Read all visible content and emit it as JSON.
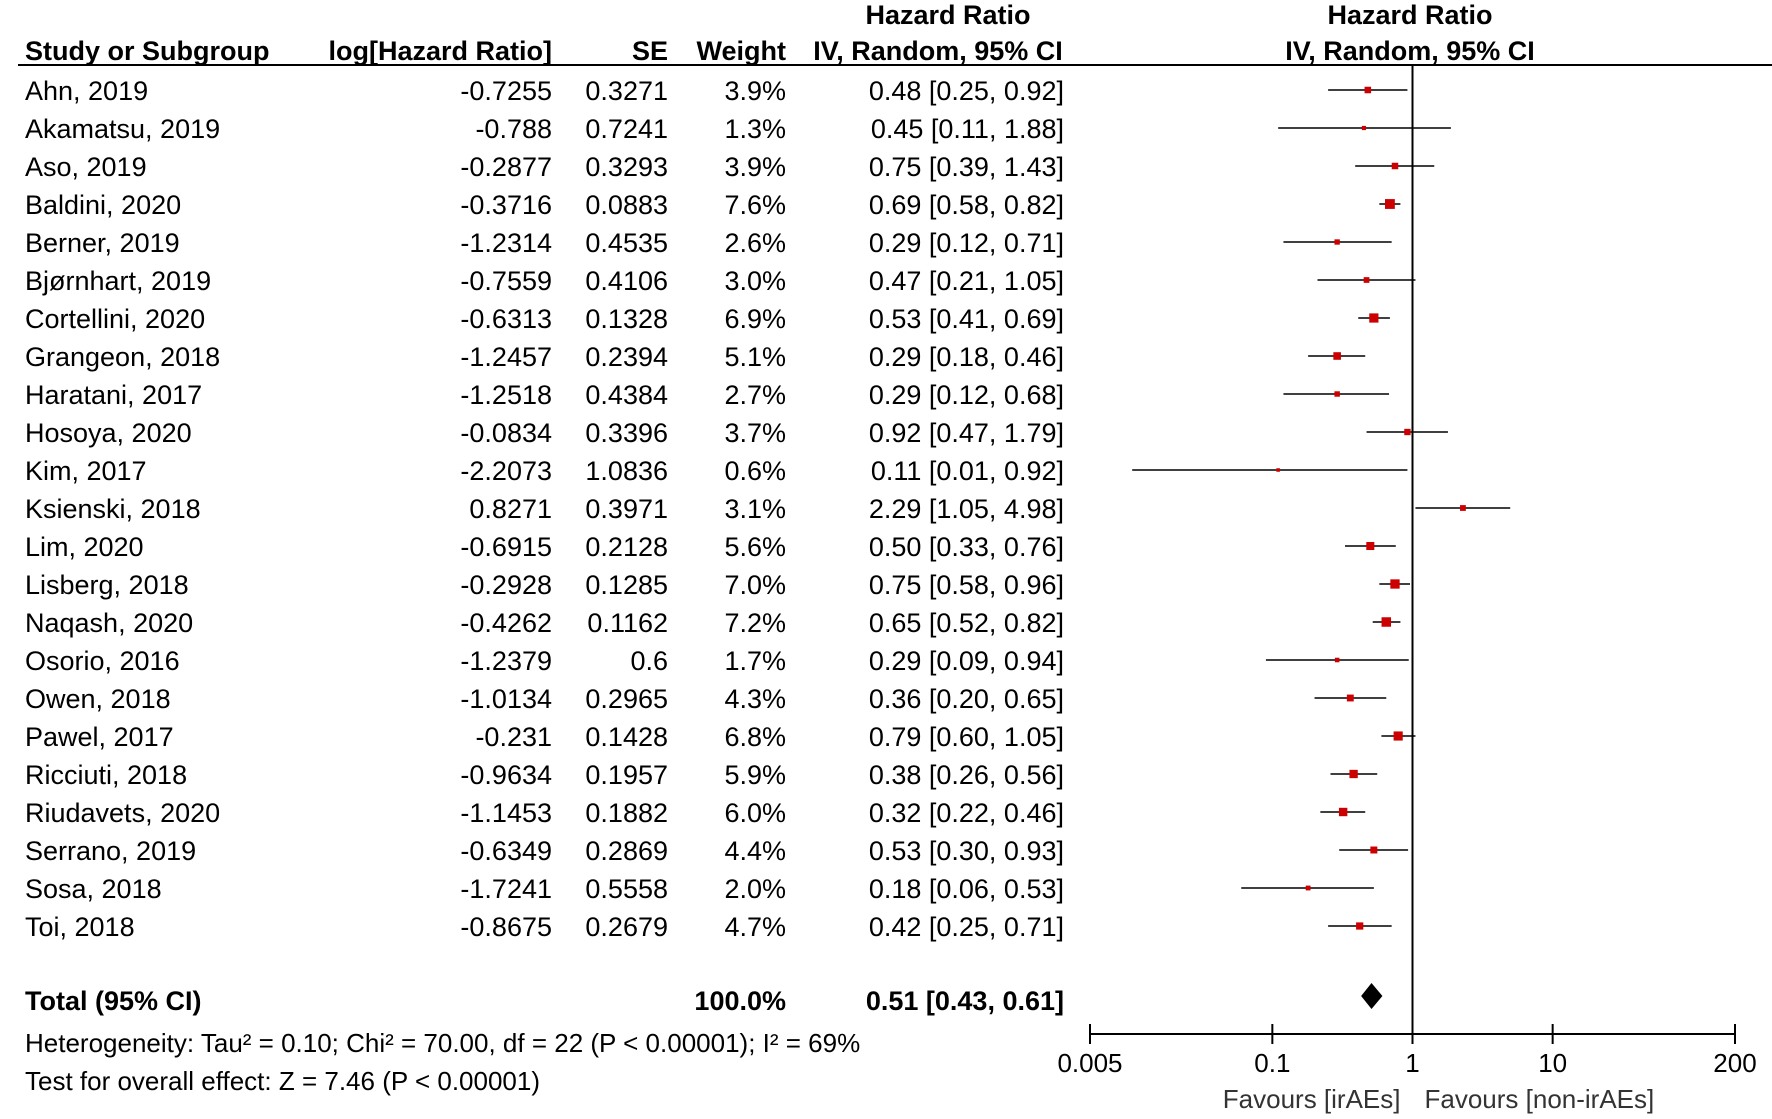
{
  "headers": {
    "study": "Study or Subgroup",
    "log_hr": "log[Hazard Ratio]",
    "se": "SE",
    "weight": "Weight",
    "ci_title": "Hazard Ratio",
    "ci_method": "IV, Random, 95% CI",
    "plot_title": "Hazard Ratio",
    "plot_method": "IV, Random, 95% CI"
  },
  "rows": [
    {
      "study": "Ahn, 2019",
      "log_hr": "-0.7255",
      "se": "0.3271",
      "weight": "3.9%",
      "ci": "0.48 [0.25, 0.92]"
    },
    {
      "study": "Akamatsu, 2019",
      "log_hr": "-0.788",
      "se": "0.7241",
      "weight": "1.3%",
      "ci": "0.45 [0.11, 1.88]"
    },
    {
      "study": "Aso, 2019",
      "log_hr": "-0.2877",
      "se": "0.3293",
      "weight": "3.9%",
      "ci": "0.75 [0.39, 1.43]"
    },
    {
      "study": "Baldini, 2020",
      "log_hr": "-0.3716",
      "se": "0.0883",
      "weight": "7.6%",
      "ci": "0.69 [0.58, 0.82]"
    },
    {
      "study": "Berner, 2019",
      "log_hr": "-1.2314",
      "se": "0.4535",
      "weight": "2.6%",
      "ci": "0.29 [0.12, 0.71]"
    },
    {
      "study": "Bjørnhart, 2019",
      "log_hr": "-0.7559",
      "se": "0.4106",
      "weight": "3.0%",
      "ci": "0.47 [0.21, 1.05]"
    },
    {
      "study": "Cortellini, 2020",
      "log_hr": "-0.6313",
      "se": "0.1328",
      "weight": "6.9%",
      "ci": "0.53 [0.41, 0.69]"
    },
    {
      "study": "Grangeon, 2018",
      "log_hr": "-1.2457",
      "se": "0.2394",
      "weight": "5.1%",
      "ci": "0.29 [0.18, 0.46]"
    },
    {
      "study": "Haratani, 2017",
      "log_hr": "-1.2518",
      "se": "0.4384",
      "weight": "2.7%",
      "ci": "0.29 [0.12, 0.68]"
    },
    {
      "study": "Hosoya, 2020",
      "log_hr": "-0.0834",
      "se": "0.3396",
      "weight": "3.7%",
      "ci": "0.92 [0.47, 1.79]"
    },
    {
      "study": "Kim, 2017",
      "log_hr": "-2.2073",
      "se": "1.0836",
      "weight": "0.6%",
      "ci": "0.11 [0.01, 0.92]"
    },
    {
      "study": "Ksienski, 2018",
      "log_hr": "0.8271",
      "se": "0.3971",
      "weight": "3.1%",
      "ci": "2.29 [1.05, 4.98]"
    },
    {
      "study": "Lim, 2020",
      "log_hr": "-0.6915",
      "se": "0.2128",
      "weight": "5.6%",
      "ci": "0.50 [0.33, 0.76]"
    },
    {
      "study": "Lisberg, 2018",
      "log_hr": "-0.2928",
      "se": "0.1285",
      "weight": "7.0%",
      "ci": "0.75 [0.58, 0.96]"
    },
    {
      "study": "Naqash, 2020",
      "log_hr": "-0.4262",
      "se": "0.1162",
      "weight": "7.2%",
      "ci": "0.65 [0.52, 0.82]"
    },
    {
      "study": "Osorio, 2016",
      "log_hr": "-1.2379",
      "se": "0.6",
      "weight": "1.7%",
      "ci": "0.29 [0.09, 0.94]"
    },
    {
      "study": "Owen, 2018",
      "log_hr": "-1.0134",
      "se": "0.2965",
      "weight": "4.3%",
      "ci": "0.36 [0.20, 0.65]"
    },
    {
      "study": "Pawel, 2017",
      "log_hr": "-0.231",
      "se": "0.1428",
      "weight": "6.8%",
      "ci": "0.79 [0.60, 1.05]"
    },
    {
      "study": "Ricciuti, 2018",
      "log_hr": "-0.9634",
      "se": "0.1957",
      "weight": "5.9%",
      "ci": "0.38 [0.26, 0.56]"
    },
    {
      "study": "Riudavets, 2020",
      "log_hr": "-1.1453",
      "se": "0.1882",
      "weight": "6.0%",
      "ci": "0.32 [0.22, 0.46]"
    },
    {
      "study": "Serrano, 2019",
      "log_hr": "-0.6349",
      "se": "0.2869",
      "weight": "4.4%",
      "ci": "0.53 [0.30, 0.93]"
    },
    {
      "study": "Sosa, 2018",
      "log_hr": "-1.7241",
      "se": "0.5558",
      "weight": "2.0%",
      "ci": "0.18 [0.06, 0.53]"
    },
    {
      "study": "Toi, 2018",
      "log_hr": "-0.8675",
      "se": "0.2679",
      "weight": "4.7%",
      "ci": "0.42 [0.25, 0.71]"
    }
  ],
  "total": {
    "label": "Total (95% CI)",
    "weight": "100.0%",
    "ci": "0.51 [0.43, 0.61]"
  },
  "heterogeneity": "Heterogeneity: Tau² = 0.10; Chi² = 70.00, df = 22 (P < 0.00001); I² = 69%",
  "overall_effect": "Test for overall effect: Z = 7.46 (P < 0.00001)",
  "chart_data": {
    "type": "forest",
    "scale": "log",
    "xlim": [
      0.005,
      200
    ],
    "ticks": [
      0.005,
      0.1,
      1,
      10,
      200
    ],
    "tick_labels": [
      "0.005",
      "0.1",
      "1",
      "10",
      "200"
    ],
    "reference_line": 1,
    "favours_left": "Favours [irAEs]",
    "favours_right": "Favours [non-irAEs]",
    "point_color": "#cc0000",
    "studies": [
      {
        "study": "Ahn, 2019",
        "hr": 0.48,
        "lo": 0.25,
        "hi": 0.92,
        "weight": 3.9
      },
      {
        "study": "Akamatsu, 2019",
        "hr": 0.45,
        "lo": 0.11,
        "hi": 1.88,
        "weight": 1.3
      },
      {
        "study": "Aso, 2019",
        "hr": 0.75,
        "lo": 0.39,
        "hi": 1.43,
        "weight": 3.9
      },
      {
        "study": "Baldini, 2020",
        "hr": 0.69,
        "lo": 0.58,
        "hi": 0.82,
        "weight": 7.6
      },
      {
        "study": "Berner, 2019",
        "hr": 0.29,
        "lo": 0.12,
        "hi": 0.71,
        "weight": 2.6
      },
      {
        "study": "Bjørnhart, 2019",
        "hr": 0.47,
        "lo": 0.21,
        "hi": 1.05,
        "weight": 3.0
      },
      {
        "study": "Cortellini, 2020",
        "hr": 0.53,
        "lo": 0.41,
        "hi": 0.69,
        "weight": 6.9
      },
      {
        "study": "Grangeon, 2018",
        "hr": 0.29,
        "lo": 0.18,
        "hi": 0.46,
        "weight": 5.1
      },
      {
        "study": "Haratani, 2017",
        "hr": 0.29,
        "lo": 0.12,
        "hi": 0.68,
        "weight": 2.7
      },
      {
        "study": "Hosoya, 2020",
        "hr": 0.92,
        "lo": 0.47,
        "hi": 1.79,
        "weight": 3.7
      },
      {
        "study": "Kim, 2017",
        "hr": 0.11,
        "lo": 0.01,
        "hi": 0.92,
        "weight": 0.6
      },
      {
        "study": "Ksienski, 2018",
        "hr": 2.29,
        "lo": 1.05,
        "hi": 4.98,
        "weight": 3.1
      },
      {
        "study": "Lim, 2020",
        "hr": 0.5,
        "lo": 0.33,
        "hi": 0.76,
        "weight": 5.6
      },
      {
        "study": "Lisberg, 2018",
        "hr": 0.75,
        "lo": 0.58,
        "hi": 0.96,
        "weight": 7.0
      },
      {
        "study": "Naqash, 2020",
        "hr": 0.65,
        "lo": 0.52,
        "hi": 0.82,
        "weight": 7.2
      },
      {
        "study": "Osorio, 2016",
        "hr": 0.29,
        "lo": 0.09,
        "hi": 0.94,
        "weight": 1.7
      },
      {
        "study": "Owen, 2018",
        "hr": 0.36,
        "lo": 0.2,
        "hi": 0.65,
        "weight": 4.3
      },
      {
        "study": "Pawel, 2017",
        "hr": 0.79,
        "lo": 0.6,
        "hi": 1.05,
        "weight": 6.8
      },
      {
        "study": "Ricciuti, 2018",
        "hr": 0.38,
        "lo": 0.26,
        "hi": 0.56,
        "weight": 5.9
      },
      {
        "study": "Riudavets, 2020",
        "hr": 0.32,
        "lo": 0.22,
        "hi": 0.46,
        "weight": 6.0
      },
      {
        "study": "Serrano, 2019",
        "hr": 0.53,
        "lo": 0.3,
        "hi": 0.93,
        "weight": 4.4
      },
      {
        "study": "Sosa, 2018",
        "hr": 0.18,
        "lo": 0.06,
        "hi": 0.53,
        "weight": 2.0
      },
      {
        "study": "Toi, 2018",
        "hr": 0.42,
        "lo": 0.25,
        "hi": 0.71,
        "weight": 4.7
      }
    ],
    "pooled": {
      "hr": 0.51,
      "lo": 0.43,
      "hi": 0.61
    }
  }
}
